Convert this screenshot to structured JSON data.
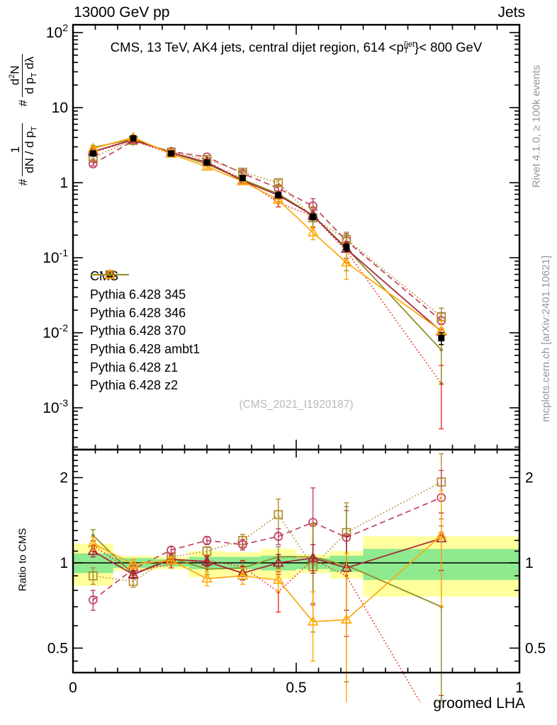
{
  "header": {
    "left": "13000 GeV pp",
    "right": "Jets"
  },
  "title": {
    "prefix": "CMS, 13 TeV, AK4 jets, central dijet region, 614 <p",
    "sup": "{jet",
    "sub": "T",
    "suffix": "}< 800 GeV"
  },
  "y_axis_label": {
    "term1": {
      "prefix": "#",
      "numerator": "1",
      "den_main": "dN / d p",
      "den_sub": "T"
    },
    "term2": {
      "prefix": "#",
      "num_a": "d",
      "num_sup": "2",
      "num_b": "N",
      "den_main": "d p",
      "den_sub": "T",
      "den_tail": " dλ"
    }
  },
  "ratio_axis_label": "Ratio to CMS",
  "x_axis_label": "groomed LHA",
  "watermark": "(CMS_2021_I1920187)",
  "side_notes": {
    "top": "Rivet 4.1.0, ≥ 100k events",
    "bottom": "mcplots.cern.ch [arXiv:2401.10621]"
  },
  "colors": {
    "frame": "#000000",
    "band_yellow": "#ffff9e",
    "band_green": "#8fe98f",
    "gray_text": "#969696",
    "watermark": "#b9b9b9"
  },
  "chart_data": {
    "type": "line",
    "title": "CMS, 13 TeV, AK4 jets, central dijet region, 614 <p_T^{jet}< 800 GeV",
    "xlabel": "groomed LHA",
    "ylabel": "# 1/(dN/dp_T) # d2N/(dp_T dlambda)",
    "x_range": [
      0,
      1
    ],
    "main_y_log_range": [
      0.001,
      100
    ],
    "ratio_y_log_range": [
      0.414,
      2.48
    ],
    "grid": false,
    "legend_position": "inside-left",
    "x": [
      0.045,
      0.135,
      0.22,
      0.3,
      0.38,
      0.46,
      0.5375,
      0.6125,
      0.825
    ],
    "x_bin_edges": [
      0,
      0.09,
      0.18,
      0.26,
      0.34,
      0.42,
      0.5,
      0.575,
      0.65,
      1.0
    ],
    "main_y_ticks": [
      {
        "base": "10",
        "exp": "2",
        "value": 100
      },
      {
        "base": "10",
        "exp": "",
        "value": 10
      },
      {
        "base": "1",
        "exp": "",
        "value": 1
      },
      {
        "base": "10",
        "exp": "-1",
        "value": 0.1
      },
      {
        "base": "10",
        "exp": "-2",
        "value": 0.01
      },
      {
        "base": "10",
        "exp": "-3",
        "value": 0.001
      }
    ],
    "x_ticks": [
      {
        "label": "0",
        "value": 0
      },
      {
        "label": "0.5",
        "value": 0.5
      },
      {
        "label": "1",
        "value": 1
      }
    ],
    "ratio_y_ticks": [
      {
        "label": "2",
        "value": 2
      },
      {
        "label": "1",
        "value": 1
      },
      {
        "label": "0.5",
        "value": 0.5
      }
    ],
    "series": [
      {
        "name": "CMS",
        "color": "#000000",
        "marker": "square-filled",
        "line": "none",
        "values": [
          2.45,
          3.9,
          2.45,
          1.85,
          1.15,
          0.68,
          0.35,
          0.137,
          0.0085
        ],
        "yerr_frac": [
          0.07,
          0.04,
          0.04,
          0.04,
          0.05,
          0.06,
          0.09,
          0.12,
          0.18
        ]
      },
      {
        "name": "Pythia 6.428 345",
        "color": "#c24161",
        "marker": "circle-open",
        "line": "dashed",
        "values": [
          1.78,
          3.6,
          2.6,
          2.2,
          1.33,
          0.84,
          0.49,
          0.168,
          0.0145
        ],
        "yerr_frac": [
          0.06,
          0.03,
          0.03,
          0.04,
          0.05,
          0.08,
          0.25,
          0.25,
          0.25
        ],
        "ratio": [
          0.74,
          0.95,
          1.11,
          1.2,
          1.16,
          1.24,
          1.39,
          1.23,
          1.7
        ],
        "ratio_err": [
          0.06,
          0.03,
          0.03,
          0.04,
          0.05,
          0.08,
          0.45,
          0.3,
          0.42
        ]
      },
      {
        "name": "Pythia 6.428 346",
        "color": "#b08c2a",
        "marker": "square-open",
        "line": "dotted",
        "values": [
          2.2,
          3.65,
          2.55,
          2.03,
          1.38,
          1.0,
          0.34,
          0.175,
          0.0164
        ],
        "yerr_frac": [
          0.06,
          0.04,
          0.03,
          0.04,
          0.05,
          0.08,
          0.25,
          0.25,
          0.3
        ],
        "ratio": [
          0.9,
          0.86,
          1.05,
          1.1,
          1.2,
          1.48,
          0.97,
          1.28,
          1.93
        ],
        "ratio_err": [
          0.06,
          0.04,
          0.03,
          0.04,
          0.06,
          0.2,
          0.4,
          0.35,
          0.5
        ]
      },
      {
        "name": "Pythia 6.428 370",
        "color": "#a32337",
        "marker": "triangle-open",
        "line": "solid",
        "values": [
          2.6,
          3.75,
          2.5,
          1.87,
          1.06,
          0.68,
          0.365,
          0.131,
          0.0104
        ],
        "yerr_frac": [
          0.05,
          0.03,
          0.03,
          0.04,
          0.05,
          0.07,
          0.12,
          0.25,
          0.25
        ],
        "ratio": [
          1.1,
          0.91,
          1.03,
          1.01,
          0.92,
          1.0,
          1.04,
          0.96,
          1.22
        ],
        "ratio_err": [
          0.05,
          0.03,
          0.03,
          0.04,
          0.05,
          0.07,
          0.12,
          0.28,
          0.28
        ]
      },
      {
        "name": "Pythia 6.428 ambt1",
        "color": "#ffa808",
        "marker": "triangle-open",
        "line": "solid",
        "values": [
          2.85,
          4.0,
          2.42,
          1.63,
          1.04,
          0.59,
          0.217,
          0.086,
          0.0106
        ],
        "yerr_frac": [
          0.05,
          0.04,
          0.03,
          0.05,
          0.06,
          0.08,
          0.2,
          0.4,
          0.35
        ],
        "ratio": [
          1.17,
          0.99,
          1.02,
          0.88,
          0.9,
          0.87,
          0.62,
          0.63,
          1.25
        ],
        "ratio_err": [
          0.06,
          0.04,
          0.03,
          0.05,
          0.06,
          0.08,
          0.17,
          0.45,
          0.55
        ]
      },
      {
        "name": "Pythia 6.428 z1",
        "color": "#ef2d1f",
        "marker": "dot",
        "line": "dotted",
        "values": [
          2.55,
          3.65,
          2.42,
          1.88,
          1.12,
          0.54,
          0.36,
          0.123,
          0.0021
        ],
        "yerr_frac": [
          0.05,
          0.03,
          0.03,
          0.04,
          0.05,
          0.12,
          0.3,
          0.3,
          0.75
        ],
        "ratio": [
          1.15,
          0.93,
          0.99,
          1.02,
          0.97,
          0.79,
          1.03,
          0.9,
          0.24
        ],
        "ratio_err": [
          0.05,
          0.03,
          0.03,
          0.04,
          0.05,
          0.12,
          0.32,
          0.35,
          0.1
        ]
      },
      {
        "name": "Pythia 6.428 z2",
        "color": "#8c8c21",
        "marker": "dot",
        "line": "solid",
        "values": [
          2.95,
          3.8,
          2.52,
          1.76,
          1.1,
          0.71,
          0.367,
          0.134,
          0.0059
        ],
        "yerr_frac": [
          0.06,
          0.03,
          0.03,
          0.04,
          0.05,
          0.09,
          0.3,
          0.5,
          0.65
        ],
        "ratio": [
          1.25,
          0.91,
          1.04,
          0.95,
          0.96,
          1.05,
          1.05,
          0.98,
          0.7
        ],
        "ratio_err": [
          0.06,
          0.03,
          0.03,
          0.04,
          0.05,
          0.09,
          0.33,
          0.6,
          0.65
        ]
      }
    ],
    "ratio_bands": {
      "yellow_hi": [
        1.17,
        1.06,
        1.05,
        1.1,
        1.09,
        1.12,
        1.07,
        1.1,
        1.24
      ],
      "yellow_lo": [
        0.83,
        0.94,
        0.95,
        0.89,
        0.9,
        0.88,
        0.92,
        0.88,
        0.76
      ],
      "green_hi": [
        1.08,
        1.04,
        1.03,
        1.05,
        1.05,
        1.06,
        1.04,
        1.06,
        1.12
      ],
      "green_lo": [
        0.92,
        0.96,
        0.97,
        0.95,
        0.95,
        0.94,
        0.95,
        0.93,
        0.87
      ]
    }
  }
}
